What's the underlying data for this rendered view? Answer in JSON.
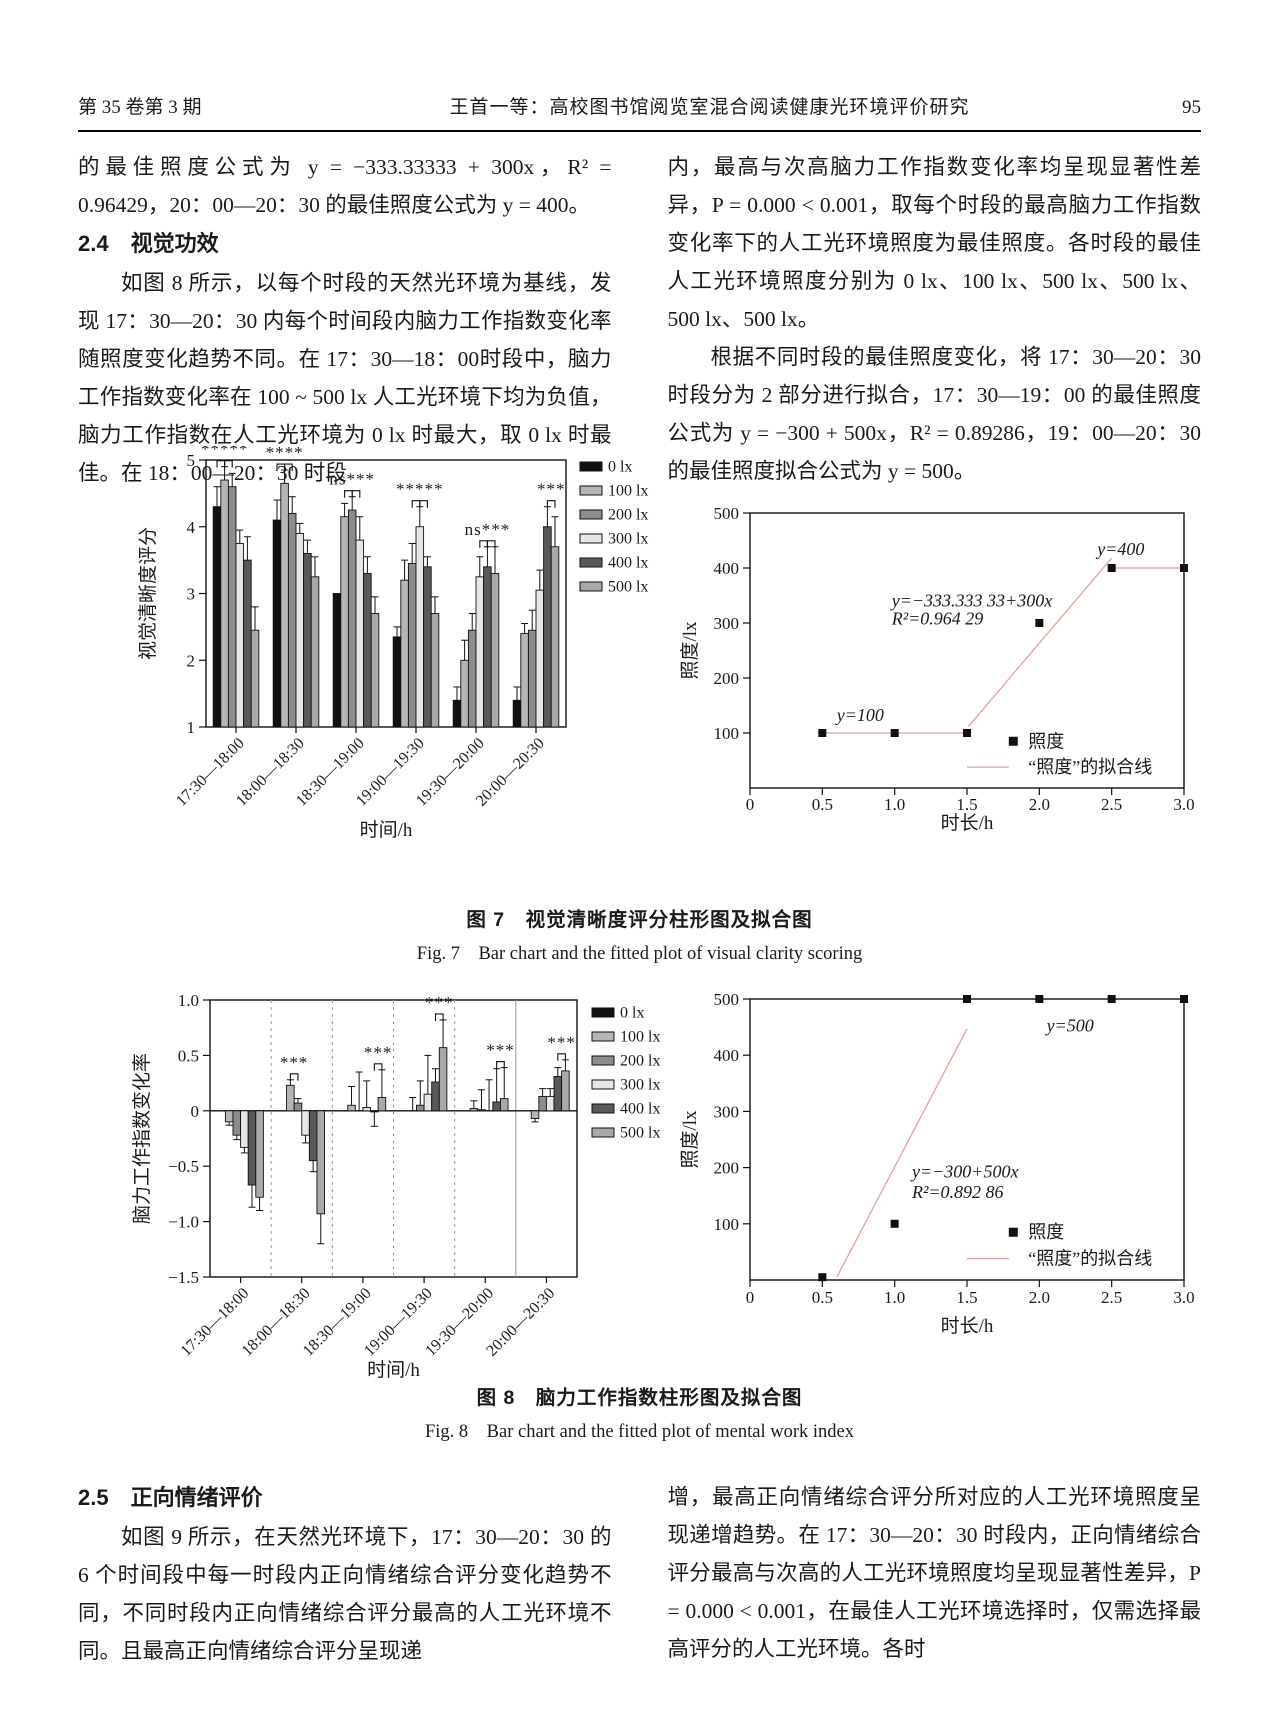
{
  "header": {
    "issue": "第 35 卷第 3 期",
    "running_title": "王首一等：高校图书馆阅览室混合阅读健康光环境评价研究",
    "page_number": "95"
  },
  "sections": {
    "top_left": {
      "p1": "的最佳照度公式为 y = −333.33333 + 300x，R² = 0.96429，20：00—20：30 的最佳照度公式为 y = 400。",
      "heading": "2.4　视觉功效",
      "p2": "如图 8 所示，以每个时段的天然光环境为基线，发现 17：30—20：30 内每个时间段内脑力工作指数变化率随照度变化趋势不同。在 17：30—18：00时段中，脑力工作指数变化率在 100 ~ 500 lx 人工光环境下均为负值，脑力工作指数在人工光环境为 0 lx 时最大，取 0 lx 时最佳。在 18：00—20：30 时段"
    },
    "top_right": {
      "p1": "内，最高与次高脑力工作指数变化率均呈现显著性差异，P = 0.000 < 0.001，取每个时段的最高脑力工作指数变化率下的人工光环境照度为最佳照度。各时段的最佳人工光环境照度分别为 0 lx、100 lx、500 lx、500 lx、500 lx、500 lx。",
      "p2": "根据不同时段的最佳照度变化，将 17：30—20：30时段分为 2 部分进行拟合，17：30—19：00 的最佳照度公式为 y = −300 + 500x，R² = 0.89286，19：00—20：30 的最佳照度拟合公式为 y = 500。"
    },
    "bottom": {
      "heading": "2.5　正向情绪评价",
      "left_p": "如图 9 所示，在天然光环境下，17：30—20：30 的 6 个时间段中每一时段内正向情绪综合评分变化趋势不同，不同时段内正向情绪综合评分最高的人工光环境不同。且最高正向情绪综合评分呈现递",
      "right_p": "增，最高正向情绪综合评分所对应的人工光环境照度呈现递增趋势。在 17：30—20：30 时段内，正向情绪综合评分最高与次高的人工光环境照度均呈现显著性差异，P = 0.000 < 0.001，在最佳人工光环境选择时，仅需选择最高评分的人工光环境。各时"
    }
  },
  "figures": {
    "fig7": {
      "caption_zh": "图 7　视觉清晰度评分柱形图及拟合图",
      "caption_en": "Fig. 7　Bar chart and the fitted plot of visual clarity scoring"
    },
    "fig8": {
      "caption_zh": "图 8　脑力工作指数柱形图及拟合图",
      "caption_en": "Fig. 8　Bar chart and the fitted plot of mental work index"
    }
  },
  "palette": {
    "fit_line": "#dca49c",
    "bar_border": "#111111",
    "separator": "#999999"
  },
  "chart_data": [
    {
      "id": "fig7-bar",
      "type": "bar",
      "ylabel": "视觉清晰度评分",
      "xlabel": "时间/h",
      "ylim": [
        1,
        5
      ],
      "yticks": [
        1,
        2,
        3,
        4,
        5
      ],
      "ytick_labels": [
        "1",
        "2",
        "3",
        "4",
        "5"
      ],
      "categories": [
        "17:30—18:00",
        "18:00—18:30",
        "18:30—19:00",
        "19:00—19:30",
        "19:30—20:00",
        "20:00—20:30"
      ],
      "series": [
        {
          "name": "0 lx",
          "color": "#111111",
          "values": [
            4.3,
            4.1,
            3.0,
            2.35,
            1.4,
            1.4
          ],
          "errors": [
            0.3,
            0.3,
            0,
            0.15,
            0.2,
            0.2
          ]
        },
        {
          "name": "100 lx",
          "color": "#b5b5b5",
          "values": [
            4.7,
            4.65,
            4.15,
            3.2,
            2.0,
            2.4
          ],
          "errors": [
            0.2,
            0.2,
            0.2,
            0.3,
            0.3,
            0.15
          ]
        },
        {
          "name": "200 lx",
          "color": "#8c8c8c",
          "values": [
            4.6,
            4.2,
            4.25,
            3.45,
            2.45,
            2.45
          ],
          "errors": [
            0.2,
            0.25,
            0.2,
            0.3,
            0.25,
            0.3
          ]
        },
        {
          "name": "300 lx",
          "color": "#e6e6e6",
          "values": [
            3.75,
            3.9,
            3.8,
            4.0,
            3.25,
            3.05
          ],
          "errors": [
            0.2,
            0.15,
            0.35,
            0.3,
            0.3,
            0.3
          ]
        },
        {
          "name": "400 lx",
          "color": "#595959",
          "values": [
            3.5,
            3.6,
            3.3,
            3.4,
            3.4,
            4.0
          ],
          "errors": [
            0.35,
            0.2,
            0.25,
            0.15,
            0.3,
            0.3
          ]
        },
        {
          "name": "500 lx",
          "color": "#a9a9a9",
          "values": [
            2.45,
            3.25,
            2.7,
            2.7,
            3.3,
            3.7
          ],
          "errors": [
            0.35,
            0.3,
            0.25,
            0.25,
            0.4,
            0.45
          ]
        }
      ],
      "significance": [
        {
          "group": 0,
          "label": "*****",
          "pairs": [
            [
              0,
              1
            ],
            [
              1,
              2
            ]
          ]
        },
        {
          "group": 1,
          "label": "****",
          "pairs": [
            [
              0,
              1
            ],
            [
              1,
              2
            ]
          ]
        },
        {
          "group": 2,
          "label": "ns***",
          "pairs": [
            [
              1,
              2
            ],
            [
              2,
              3
            ]
          ]
        },
        {
          "group": 3,
          "label": "*****",
          "pairs": [
            [
              2,
              3
            ],
            [
              3,
              4
            ]
          ]
        },
        {
          "group": 4,
          "label": "ns***",
          "pairs": [
            [
              3,
              4
            ],
            [
              4,
              5
            ]
          ]
        },
        {
          "group": 5,
          "label": "***",
          "pairs": [
            [
              4,
              5
            ]
          ]
        }
      ],
      "legend_position": "right"
    },
    {
      "id": "fig7-fit",
      "type": "scatter",
      "ylabel": "照度/lx",
      "xlabel": "时长/h",
      "xlim": [
        0,
        3
      ],
      "ylim": [
        0,
        500
      ],
      "xticks": [
        0,
        0.5,
        1.0,
        1.5,
        2.0,
        2.5,
        3.0
      ],
      "xtick_labels": [
        "0",
        "0.5",
        "1.0",
        "1.5",
        "2.0",
        "2.5",
        "3.0"
      ],
      "yticks": [
        100,
        200,
        300,
        400,
        500
      ],
      "ytick_labels": [
        "100",
        "200",
        "300",
        "400",
        "500"
      ],
      "points": [
        [
          0.5,
          100
        ],
        [
          1.0,
          100
        ],
        [
          1.5,
          100
        ],
        [
          2.0,
          300
        ],
        [
          2.5,
          400
        ],
        [
          3.0,
          400
        ]
      ],
      "fit_segments": [
        [
          [
            0.5,
            100
          ],
          [
            1.5,
            100
          ]
        ],
        [
          [
            1.51,
            112
          ],
          [
            2.5,
            418
          ]
        ],
        [
          [
            2.5,
            400
          ],
          [
            3.0,
            400
          ]
        ]
      ],
      "fit_color": "#dca49c",
      "annotations": [
        {
          "x": 0.6,
          "y": 122,
          "text": "y=100"
        },
        {
          "x": 0.98,
          "y": 330,
          "text": "y=−333.333 33+300x"
        },
        {
          "x": 0.98,
          "y": 297,
          "text": "R²=0.964 29"
        },
        {
          "x": 2.4,
          "y": 424,
          "text": "y=400"
        }
      ],
      "legend": {
        "x": 1.82,
        "y": 85,
        "line_x1": 1.5,
        "line_x2": 1.79,
        "line_y": 38,
        "point_label": "照度",
        "line_label": "“照度”的拟合线"
      }
    },
    {
      "id": "fig8-bar",
      "type": "bar",
      "ylabel": "脑力工作指数变化率",
      "xlabel": "时间/h",
      "ylim": [
        -1.5,
        1.0
      ],
      "yticks": [
        1.0,
        0.5,
        0,
        -0.5,
        -1.0,
        -1.5
      ],
      "ytick_labels": [
        "1.0",
        "0.5",
        "0",
        "−0.5",
        "−1.0",
        "−1.5"
      ],
      "baseline": 0,
      "group_separators": true,
      "categories": [
        "17:30—18:00",
        "18:00—18:30",
        "18:30—19:00",
        "19:00—19:30",
        "19:30—20:00",
        "20:00—20:30"
      ],
      "series": [
        {
          "name": "0 lx",
          "color": "#111111",
          "values": [
            0,
            0,
            0,
            0,
            0,
            0
          ],
          "errors": [
            0,
            0,
            0,
            0,
            0,
            0
          ]
        },
        {
          "name": "100 lx",
          "color": "#b5b5b5",
          "values": [
            -0.1,
            0.23,
            0.05,
            0.0,
            0.02,
            -0.07
          ],
          "errors": [
            0.03,
            0.05,
            0.17,
            0.12,
            0.07,
            0.03
          ]
        },
        {
          "name": "200 lx",
          "color": "#8c8c8c",
          "values": [
            -0.22,
            0.07,
            0.0,
            0.05,
            0.01,
            0.13
          ],
          "errors": [
            0.04,
            0.04,
            0.35,
            0.22,
            0.18,
            0.07
          ]
        },
        {
          "name": "300 lx",
          "color": "#e6e6e6",
          "values": [
            -0.33,
            -0.22,
            0.03,
            0.15,
            0.0,
            0.13
          ],
          "errors": [
            0.05,
            0.07,
            0.24,
            0.35,
            0.28,
            0.07
          ]
        },
        {
          "name": "400 lx",
          "color": "#595959",
          "values": [
            -0.67,
            -0.45,
            -0.01,
            0.26,
            0.08,
            0.31
          ],
          "errors": [
            0.2,
            0.1,
            0.13,
            0.12,
            0.3,
            0.08
          ]
        },
        {
          "name": "500 lx",
          "color": "#a9a9a9",
          "values": [
            -0.78,
            -0.93,
            0.12,
            0.57,
            0.11,
            0.36
          ],
          "errors": [
            0.12,
            0.27,
            0.25,
            0.25,
            0.28,
            0.1
          ]
        }
      ],
      "significance": [
        {
          "group": 1,
          "label": "***",
          "pairs": [
            [
              1,
              2
            ]
          ]
        },
        {
          "group": 2,
          "label": "***",
          "pairs": [
            [
              4,
              5
            ]
          ]
        },
        {
          "group": 3,
          "label": "***",
          "pairs": [
            [
              4,
              5
            ]
          ]
        },
        {
          "group": 4,
          "label": "***",
          "pairs": [
            [
              4,
              5
            ]
          ]
        },
        {
          "group": 5,
          "label": "***",
          "pairs": [
            [
              4,
              5
            ]
          ]
        }
      ],
      "legend_position": "right"
    },
    {
      "id": "fig8-fit",
      "type": "scatter",
      "ylabel": "照度/lx",
      "xlabel": "时长/h",
      "xlim": [
        0,
        3
      ],
      "ylim": [
        0,
        500
      ],
      "xticks": [
        0,
        0.5,
        1.0,
        1.5,
        2.0,
        2.5,
        3.0
      ],
      "xtick_labels": [
        "0",
        "0.5",
        "1.0",
        "1.5",
        "2.0",
        "2.5",
        "3.0"
      ],
      "yticks": [
        100,
        200,
        300,
        400,
        500
      ],
      "ytick_labels": [
        "100",
        "200",
        "300",
        "400",
        "500"
      ],
      "points": [
        [
          0.5,
          5
        ],
        [
          1.0,
          100
        ],
        [
          1.5,
          500
        ],
        [
          2.0,
          500
        ],
        [
          2.5,
          500
        ],
        [
          3.0,
          500
        ]
      ],
      "fit_segments": [
        [
          [
            0.6,
            5
          ],
          [
            1.5,
            447
          ]
        ]
      ],
      "fit_color": "#dca49c",
      "annotations": [
        {
          "x": 2.05,
          "y": 442,
          "text": "y=500"
        },
        {
          "x": 1.12,
          "y": 182,
          "text": "y=−300+500x"
        },
        {
          "x": 1.12,
          "y": 146,
          "text": "R²=0.892 86"
        }
      ],
      "legend": {
        "x": 1.82,
        "y": 85,
        "line_x1": 1.5,
        "line_x2": 1.79,
        "line_y": 38,
        "point_label": "照度",
        "line_label": "“照度”的拟合线"
      }
    }
  ]
}
